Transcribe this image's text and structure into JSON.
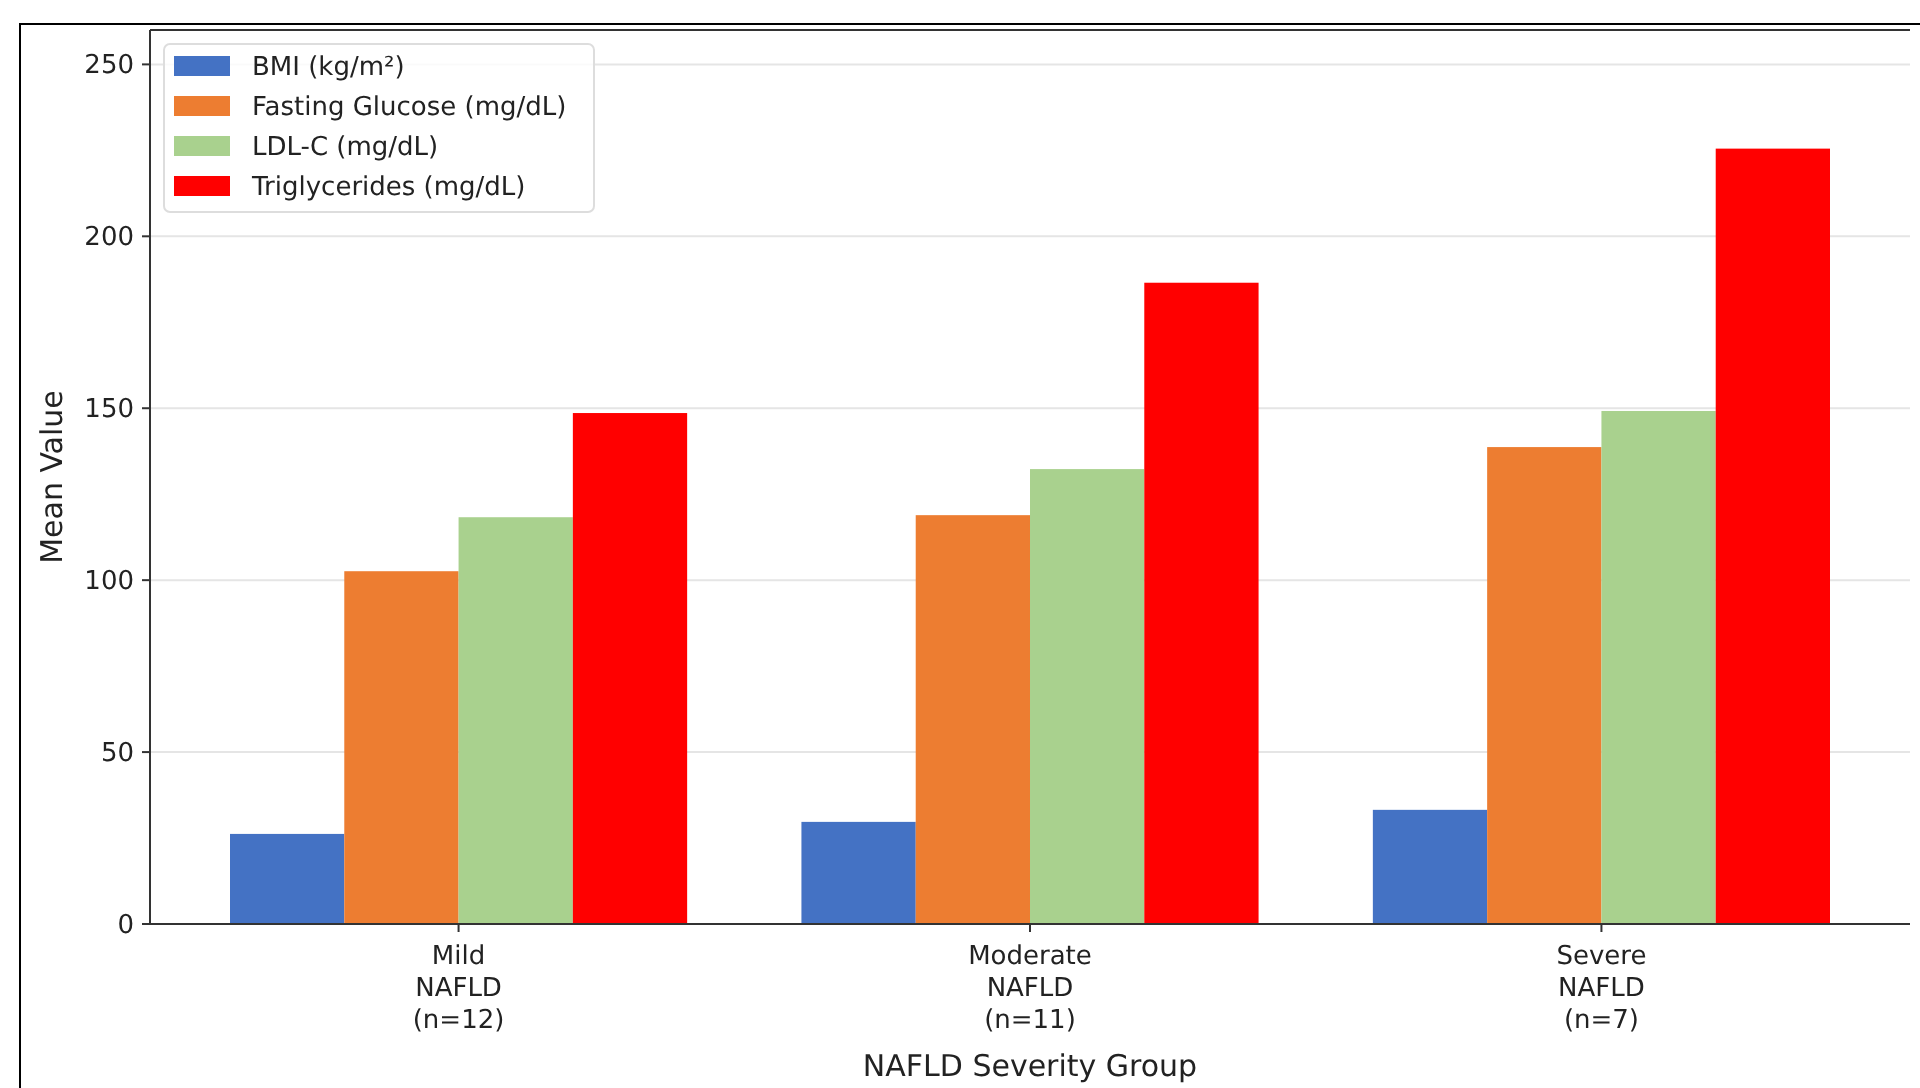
{
  "chart_data": {
    "type": "bar",
    "xlabel": "NAFLD Severity Group",
    "ylabel": "Mean Value",
    "categories": [
      "Mild\nNAFLD\n(n=12)",
      "Moderate\nNAFLD\n(n=11)",
      "Severe\nNAFLD\n(n=7)"
    ],
    "series": [
      {
        "name": "BMI (kg/m²)",
        "color": "#4472c4",
        "values": [
          26.2,
          29.7,
          33.2
        ]
      },
      {
        "name": "Fasting Glucose (mg/dL)",
        "color": "#ed7d31",
        "values": [
          102.6,
          118.9,
          138.7
        ]
      },
      {
        "name": "LDL-C (mg/dL)",
        "color": "#a9d18e",
        "values": [
          118.3,
          132.3,
          149.2
        ]
      },
      {
        "name": "Triglycerides (mg/dL)",
        "color": "#ff0000",
        "values": [
          148.6,
          186.5,
          225.5
        ]
      }
    ],
    "ylim": [
      0,
      260
    ],
    "yticks": [
      0,
      50,
      100,
      150,
      200,
      250
    ],
    "grid": "y",
    "legend": "top left"
  }
}
